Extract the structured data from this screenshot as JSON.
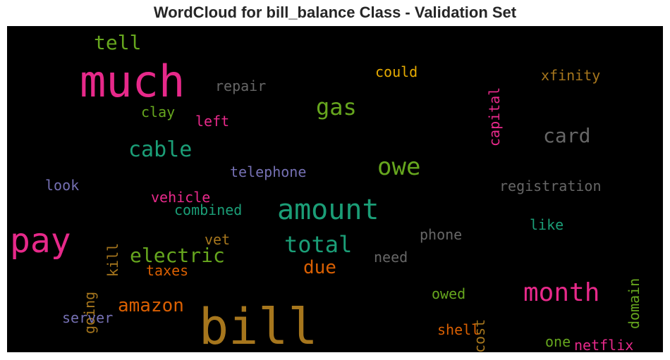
{
  "chart_data": {
    "type": "wordcloud",
    "title": "WordCloud for bill_balance Class - Validation Set",
    "background": "#000000",
    "words": [
      {
        "text": "much",
        "color": "#e7298a"
      },
      {
        "text": "bill",
        "color": "#a6761d"
      },
      {
        "text": "pay",
        "color": "#e7298a"
      },
      {
        "text": "amount",
        "color": "#1b9e77"
      },
      {
        "text": "month",
        "color": "#e7298a"
      },
      {
        "text": "owe",
        "color": "#66a61e"
      },
      {
        "text": "total",
        "color": "#1b9e77"
      },
      {
        "text": "cable",
        "color": "#1b9e77"
      },
      {
        "text": "gas",
        "color": "#66a61e"
      },
      {
        "text": "electric",
        "color": "#66a61e"
      },
      {
        "text": "card",
        "color": "#666666"
      },
      {
        "text": "amazon",
        "color": "#d95f02"
      },
      {
        "text": "due",
        "color": "#d95f02"
      },
      {
        "text": "tell",
        "color": "#66a61e"
      },
      {
        "text": "xfinity",
        "color": "#a6761d"
      },
      {
        "text": "could",
        "color": "#e6ab02"
      },
      {
        "text": "repair",
        "color": "#666666"
      },
      {
        "text": "capital",
        "color": "#e7298a"
      },
      {
        "text": "clay",
        "color": "#66a61e"
      },
      {
        "text": "left",
        "color": "#e7298a"
      },
      {
        "text": "telephone",
        "color": "#7570b3"
      },
      {
        "text": "registration",
        "color": "#666666"
      },
      {
        "text": "look",
        "color": "#7570b3"
      },
      {
        "text": "vehicle",
        "color": "#e7298a"
      },
      {
        "text": "combined",
        "color": "#1b9e77"
      },
      {
        "text": "kill",
        "color": "#a6761d"
      },
      {
        "text": "like",
        "color": "#1b9e77"
      },
      {
        "text": "phone",
        "color": "#666666"
      },
      {
        "text": "domain",
        "color": "#66a61e"
      },
      {
        "text": "vet",
        "color": "#a6761d"
      },
      {
        "text": "need",
        "color": "#666666"
      },
      {
        "text": "going",
        "color": "#a6761d"
      },
      {
        "text": "taxes",
        "color": "#d95f02"
      },
      {
        "text": "owed",
        "color": "#66a61e"
      },
      {
        "text": "cost",
        "color": "#a6761d"
      },
      {
        "text": "server",
        "color": "#7570b3"
      },
      {
        "text": "shell",
        "color": "#d95f02"
      },
      {
        "text": "one",
        "color": "#66a61e"
      },
      {
        "text": "netflix",
        "color": "#e7298a"
      }
    ]
  }
}
